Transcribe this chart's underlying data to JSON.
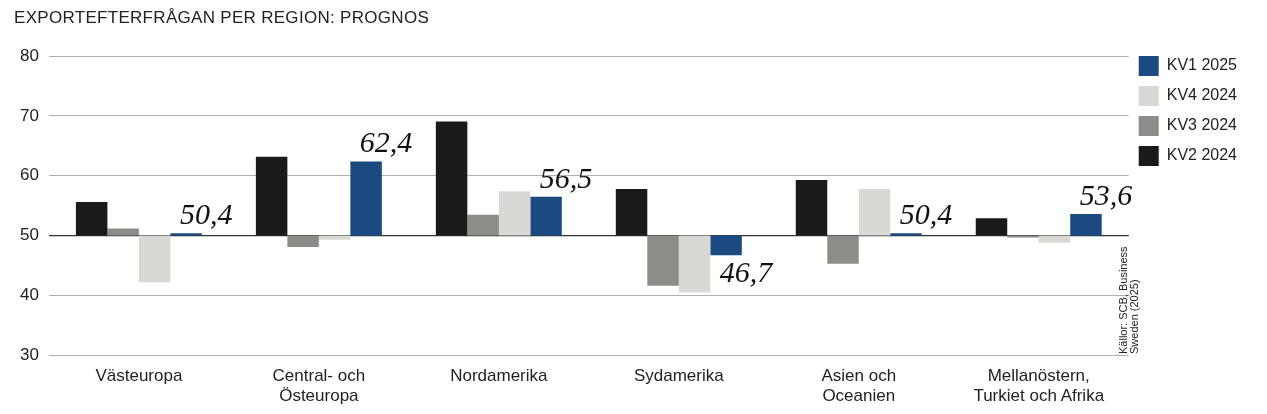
{
  "chart_data": {
    "type": "bar",
    "title": "EXPORTEFTERFRÅGAN PER REGION: PROGNOS",
    "categories": [
      "Västeuropa",
      "Central- och Östeuropa",
      "Nordamerika",
      "Sydamerika",
      "Asien och Oceanien",
      "Mellanöstern, Turkiet och Afrika"
    ],
    "series": [
      {
        "name": "KV2 2024",
        "color": "#1a1a1a",
        "base": [
          50,
          50,
          50,
          50,
          50,
          50
        ],
        "values": [
          5.6,
          13.2,
          19.1,
          7.8,
          9.3,
          2.9
        ]
      },
      {
        "name": "KV3 2024",
        "color": "#8c8c88",
        "base": [
          50,
          50,
          50,
          50,
          50,
          50
        ],
        "values": [
          1.2,
          -1.9,
          3.5,
          -8.4,
          -4.7,
          -0.3
        ]
      },
      {
        "name": "KV4 2024",
        "color": "#d9d8d4",
        "base": [
          50,
          50,
          50,
          50,
          50,
          50
        ],
        "values": [
          -7.8,
          -0.7,
          7.4,
          -9.5,
          7.8,
          -1.2
        ]
      },
      {
        "name": "KV1 2025",
        "color": "#1a4a80",
        "base": [
          50,
          50,
          50,
          50,
          50,
          50
        ],
        "values": [
          0.4,
          12.4,
          6.5,
          -3.3,
          0.4,
          3.6
        ],
        "value_labels": [
          "50,4",
          "62,4",
          "56,5",
          "46,7",
          "50,4",
          "53,6"
        ]
      }
    ],
    "ylim": [
      30,
      80
    ],
    "yticks": [
      30,
      40,
      50,
      60,
      70,
      80
    ],
    "grid": "y",
    "legend": "right",
    "ref_lines": [
      {
        "axis": "y",
        "value": 50,
        "color": "#333333"
      }
    ],
    "annotations": [
      "Källor: SCB, Business Sweden (2025)"
    ]
  }
}
